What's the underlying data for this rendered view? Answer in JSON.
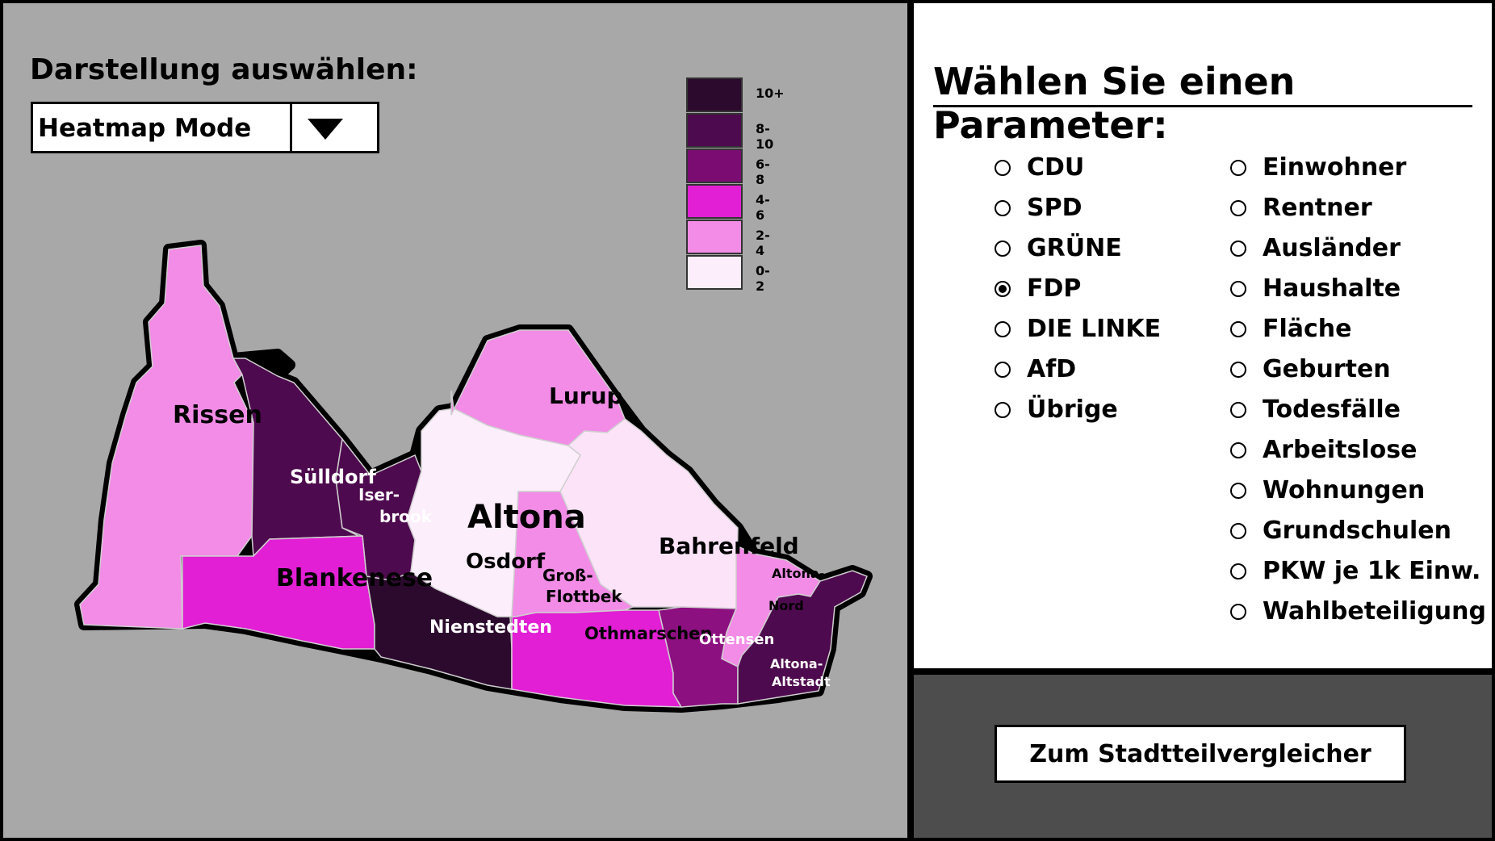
{
  "mode": {
    "label": "Darstellung auswählen:",
    "selected": "Heatmap Mode",
    "arrow_icon": "triangle-down-icon"
  },
  "legend": [
    {
      "label": "10+",
      "color": "#2c0a2e"
    },
    {
      "label": "8-10",
      "color": "#4e0a4e"
    },
    {
      "label": "6-8",
      "color": "#7a0c72"
    },
    {
      "label": "4-6",
      "color": "#e21fd4"
    },
    {
      "label": "2-4",
      "color": "#f28ce6"
    },
    {
      "label": "0-2",
      "color": "#fdeefb"
    }
  ],
  "map": {
    "title": "Altona",
    "districts": [
      {
        "name": "Rissen",
        "color": "#f28ce6"
      },
      {
        "name": "Sülldorf",
        "color": "#4e0a4e"
      },
      {
        "name": "Iser-",
        "name2": "brook",
        "color": "#4e0a4e"
      },
      {
        "name": "Blankenese",
        "color": "#e21fd4"
      },
      {
        "name": "Nienstedten",
        "color": "#2c0a2e"
      },
      {
        "name": "Osdorf",
        "color": "#fdeefb"
      },
      {
        "name": "Lurup",
        "color": "#f28ce6"
      },
      {
        "name": "Bahrenfeld",
        "color": "#fce3f8"
      },
      {
        "name": "Groß-",
        "name2": "Flottbek",
        "color": "#f28ce6"
      },
      {
        "name": "Othmarschen",
        "color": "#e21fd4"
      },
      {
        "name": "Ottensen",
        "color": "#8c1080"
      },
      {
        "name": "Altona-",
        "name2": "Nord",
        "color": "#f28ce6"
      },
      {
        "name": "Altona-",
        "name2": "Altstadt",
        "color": "#4e0a4e"
      }
    ]
  },
  "params": {
    "title": "Wählen Sie einen Parameter:",
    "left": [
      {
        "label": "CDU",
        "checked": false
      },
      {
        "label": "SPD",
        "checked": false
      },
      {
        "label": "GRÜNE",
        "checked": false
      },
      {
        "label": "FDP",
        "checked": true
      },
      {
        "label": "DIE LINKE",
        "checked": false
      },
      {
        "label": "AfD",
        "checked": false
      },
      {
        "label": "Übrige",
        "checked": false
      }
    ],
    "right": [
      {
        "label": "Einwohner",
        "checked": false
      },
      {
        "label": "Rentner",
        "checked": false
      },
      {
        "label": "Ausländer",
        "checked": false
      },
      {
        "label": "Haushalte",
        "checked": false
      },
      {
        "label": "Fläche",
        "checked": false
      },
      {
        "label": "Geburten",
        "checked": false
      },
      {
        "label": "Todesfälle",
        "checked": false
      },
      {
        "label": "Arbeitslose",
        "checked": false
      },
      {
        "label": "Wohnungen",
        "checked": false
      },
      {
        "label": "Grundschulen",
        "checked": false
      },
      {
        "label": "PKW je 1k Einw.",
        "checked": false
      },
      {
        "label": "Wahlbeteiligung",
        "checked": false
      }
    ]
  },
  "compare_button": "Zum Stadtteilvergleicher"
}
